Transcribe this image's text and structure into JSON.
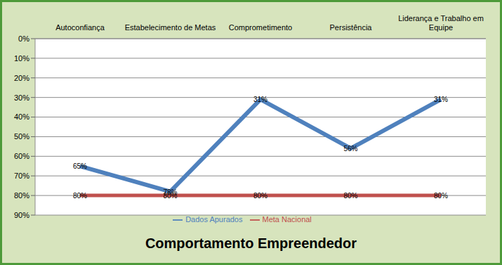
{
  "chart_data": {
    "type": "line",
    "title": "Comportamento Empreendedor",
    "categories": [
      "Autoconfiança",
      "Estabelecimento de Metas",
      "Comprometimento",
      "Persistência",
      "Liderança e Trabalho em Equipe"
    ],
    "series": [
      {
        "name": "Dados Apurados",
        "color": "#4f81bd",
        "values": [
          65,
          78,
          31,
          56,
          31
        ],
        "value_labels": [
          "65%",
          "78%",
          "31%",
          "56%",
          "31%"
        ]
      },
      {
        "name": "Meta Nacional",
        "color": "#c0504d",
        "values": [
          80,
          80,
          80,
          80,
          80
        ],
        "value_labels": [
          "80%",
          "80%",
          "80%",
          "80%",
          "80%"
        ]
      }
    ],
    "ylim": [
      0,
      90
    ],
    "yticks": [
      {
        "value": 0,
        "label": "0%"
      },
      {
        "value": 10,
        "label": "10%"
      },
      {
        "value": 20,
        "label": "20%"
      },
      {
        "value": 30,
        "label": "30%"
      },
      {
        "value": 40,
        "label": "40%"
      },
      {
        "value": 50,
        "label": "50%"
      },
      {
        "value": 60,
        "label": "60%"
      },
      {
        "value": 70,
        "label": "70%"
      },
      {
        "value": 80,
        "label": "80%"
      },
      {
        "value": 90,
        "label": "90%"
      }
    ],
    "grid": true,
    "data_labels": true,
    "legend": "bottom"
  }
}
